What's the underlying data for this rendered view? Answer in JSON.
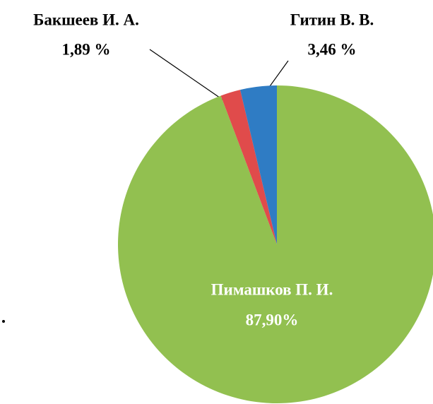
{
  "chart_data": {
    "type": "pie",
    "categories": [
      "Пимашков П. И.",
      "Бакшеев И. А.",
      "Гитин В. В."
    ],
    "values": [
      87.9,
      1.89,
      3.46
    ],
    "value_labels": [
      "87,90%",
      "1,89 %",
      "3,46 %"
    ],
    "colors": [
      "#92c050",
      "#e04b4b",
      "#2f7cc4"
    ]
  }
}
